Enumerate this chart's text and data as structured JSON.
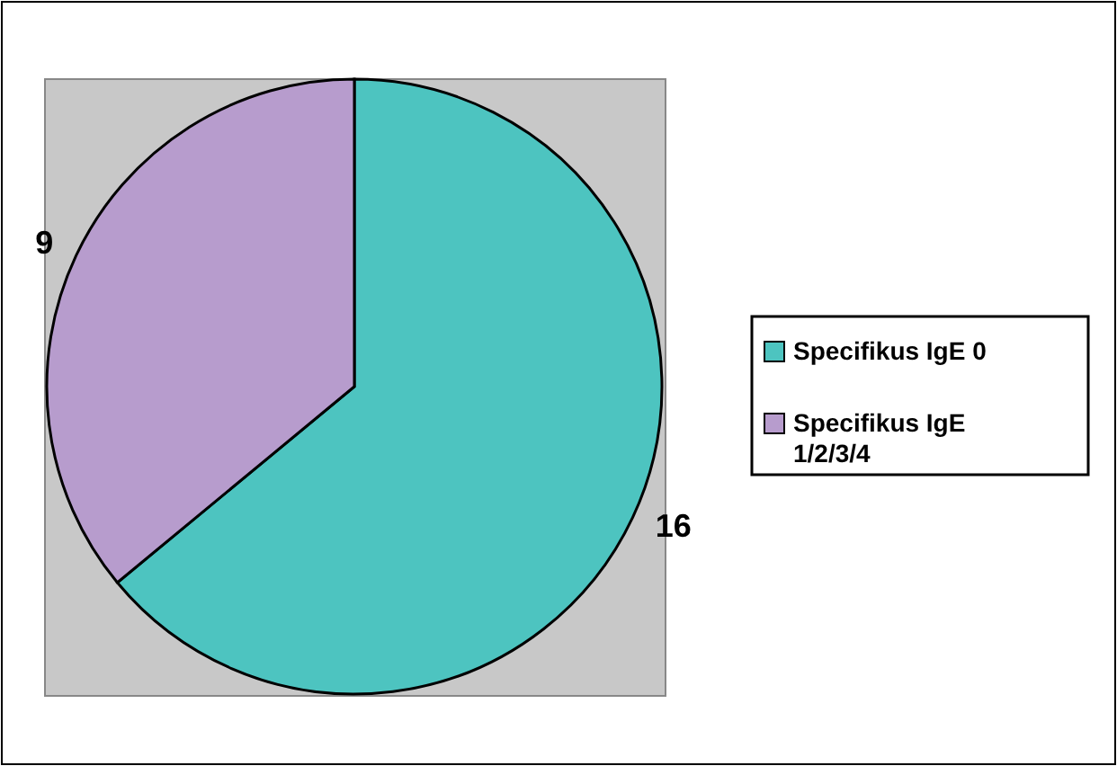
{
  "chart_data": {
    "type": "pie",
    "categories": [
      "Specifikus IgE 0",
      "Specifikus IgE 1/2/3/4"
    ],
    "values": [
      16,
      9
    ],
    "colors": [
      "#4dc4c0",
      "#b79ccd"
    ],
    "data_labels": true,
    "legend": "right"
  }
}
